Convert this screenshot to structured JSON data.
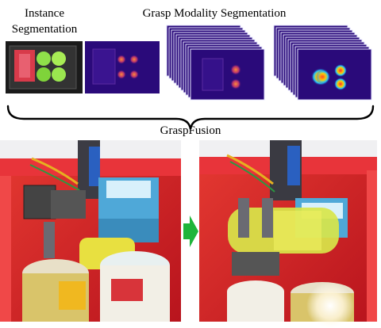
{
  "labels": {
    "instance_line1": "Instance",
    "instance_line2": "Segmentation",
    "grasp_modality": "Grasp Modality Segmentation",
    "grasp_fusion": "GraspFusion"
  },
  "colors": {
    "mask_background": "#2a0a7a",
    "photo_bin": "#d8222a",
    "arrow": "#1fb53a"
  }
}
